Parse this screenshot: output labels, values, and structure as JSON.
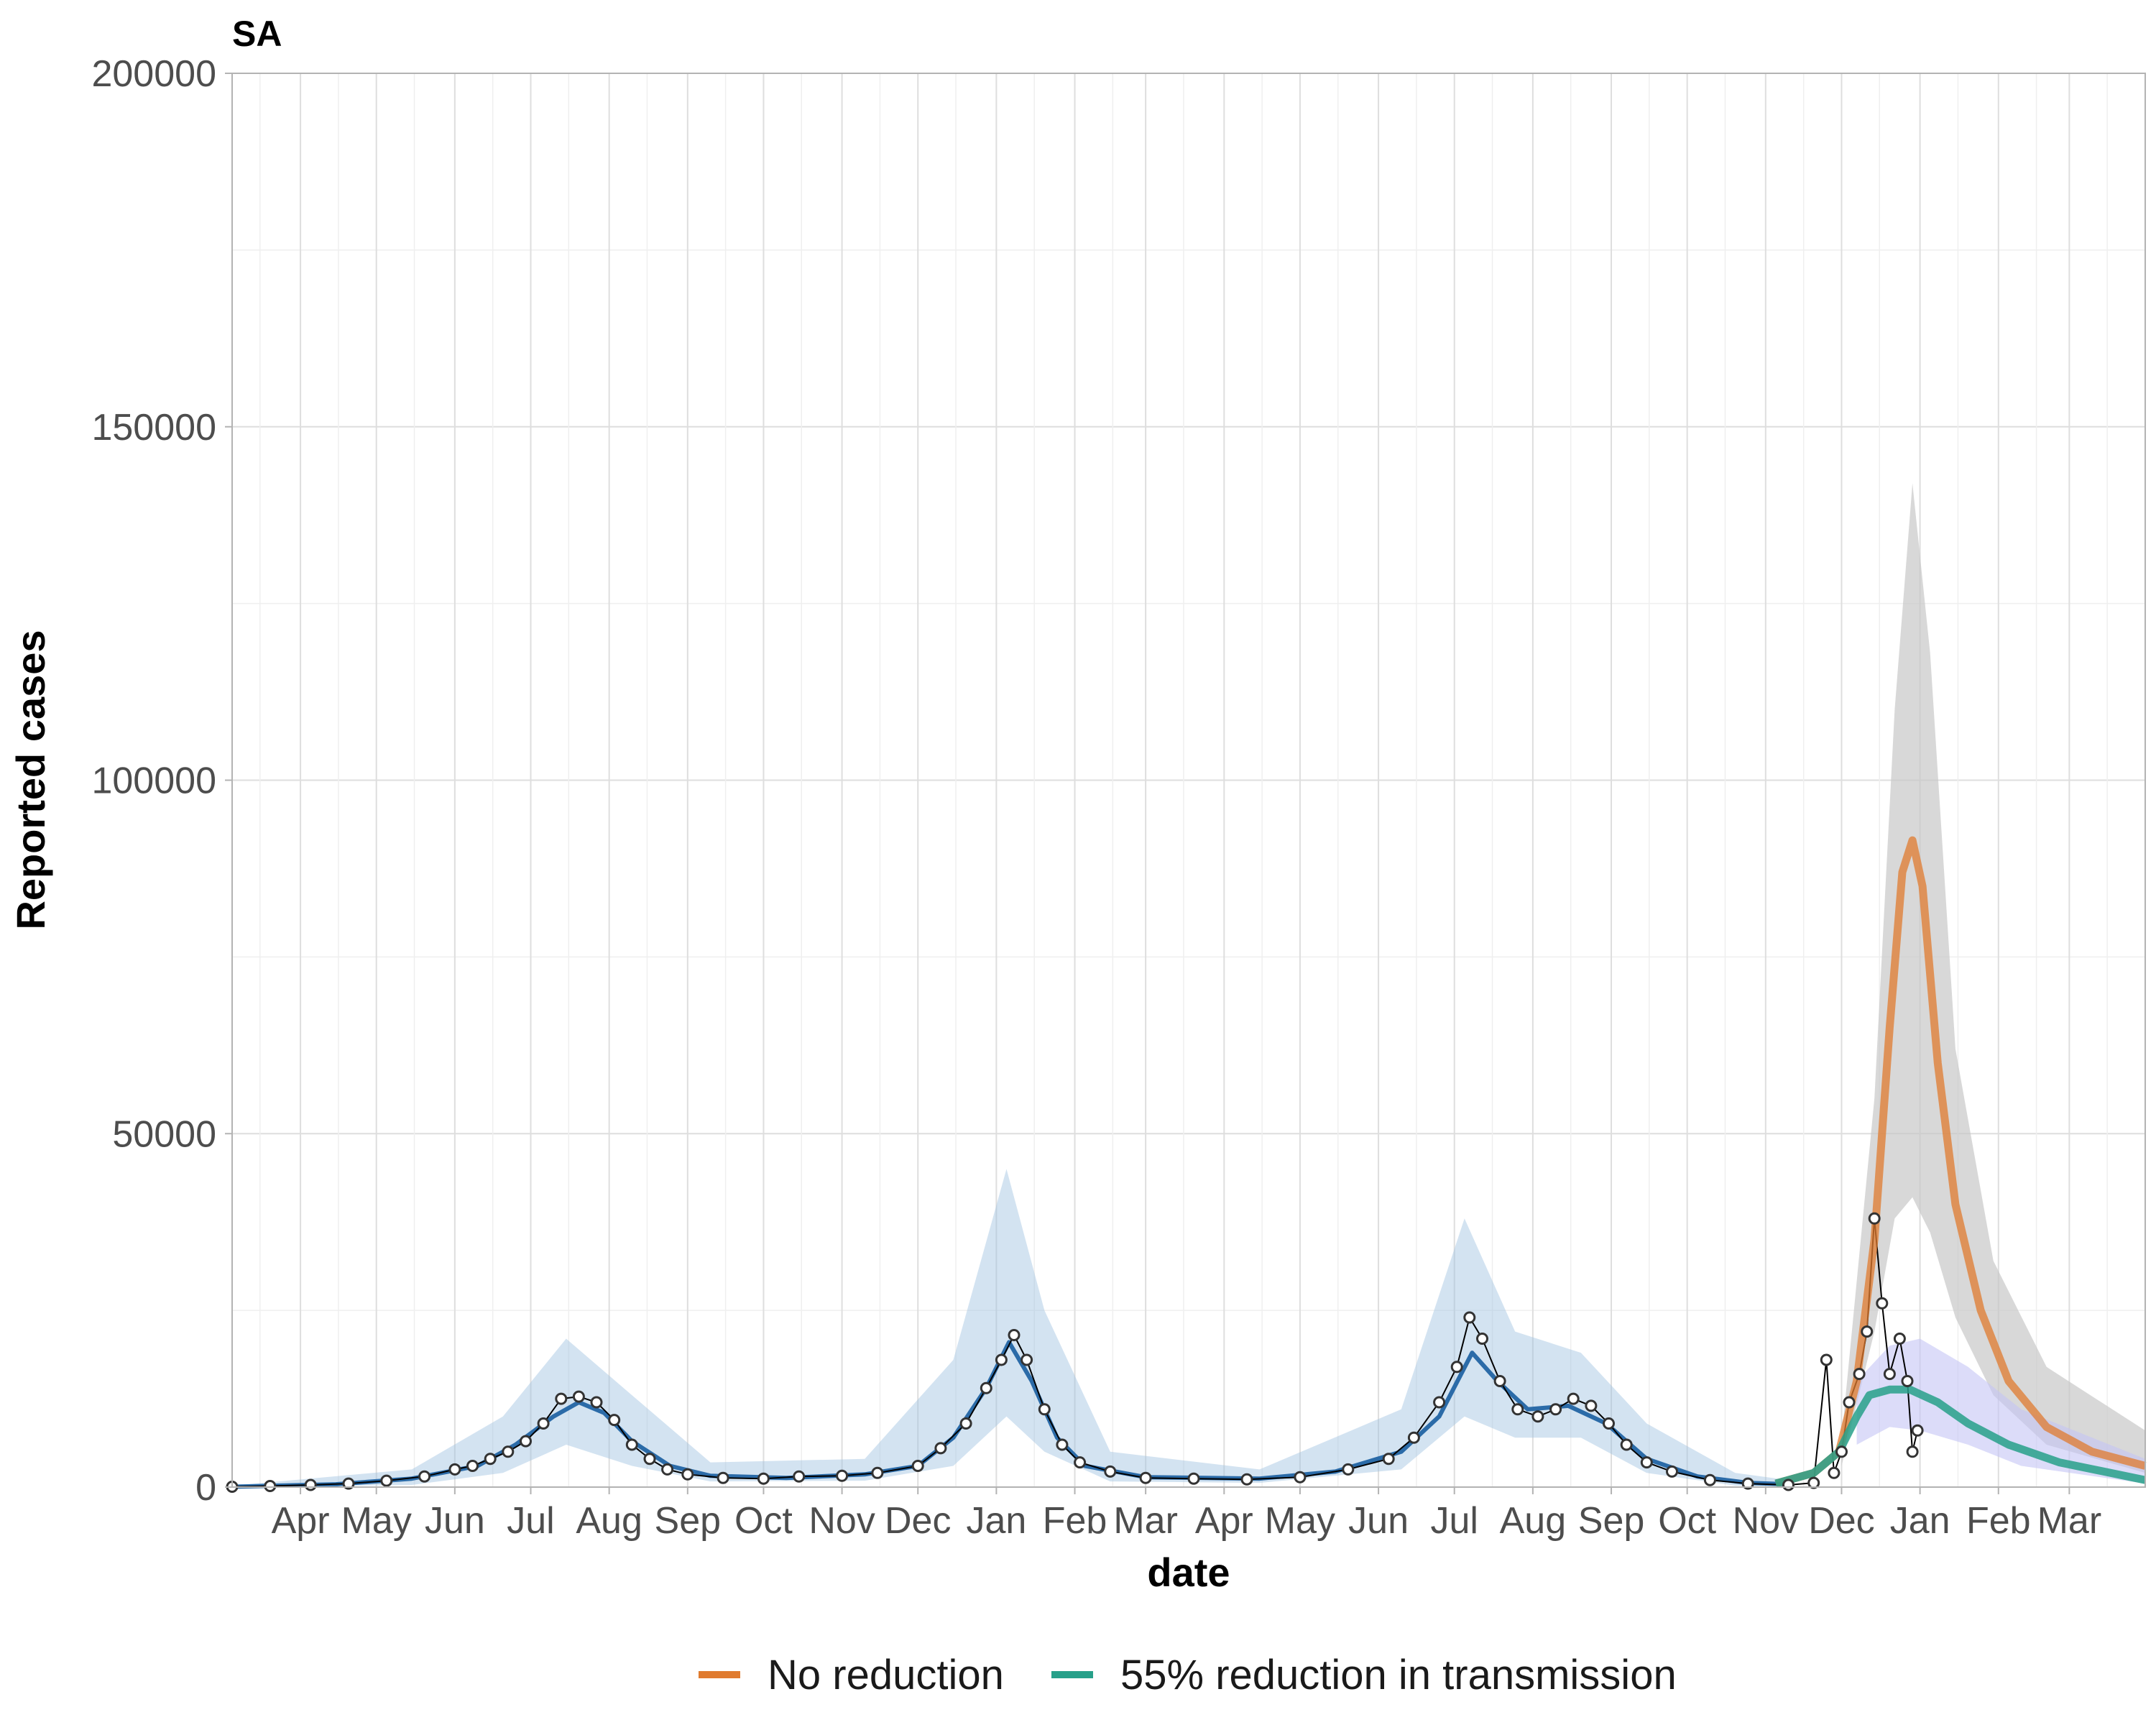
{
  "chart_data": {
    "type": "line",
    "title": "SA",
    "xlabel": "date",
    "ylabel": "Reported cases",
    "ylim": [
      0,
      200000
    ],
    "y_ticks": [
      "0",
      "50000",
      "100000",
      "150000",
      "200000"
    ],
    "x_range": [
      "2020-03-05",
      "2022-03-31"
    ],
    "x_tick_labels": [
      {
        "date": "2020-04-01",
        "label": "Apr"
      },
      {
        "date": "2020-05-01",
        "label": "May"
      },
      {
        "date": "2020-06-01",
        "label": "Jun"
      },
      {
        "date": "2020-07-01",
        "label": "Jul"
      },
      {
        "date": "2020-08-01",
        "label": "Aug"
      },
      {
        "date": "2020-09-01",
        "label": "Sep"
      },
      {
        "date": "2020-10-01",
        "label": "Oct"
      },
      {
        "date": "2020-11-01",
        "label": "Nov"
      },
      {
        "date": "2020-12-01",
        "label": "Dec"
      },
      {
        "date": "2021-01-01",
        "label": "Jan"
      },
      {
        "date": "2021-02-01",
        "label": "Feb"
      },
      {
        "date": "2021-03-01",
        "label": "Mar"
      },
      {
        "date": "2021-04-01",
        "label": "Apr"
      },
      {
        "date": "2021-05-01",
        "label": "May"
      },
      {
        "date": "2021-06-01",
        "label": "Jun"
      },
      {
        "date": "2021-07-01",
        "label": "Jul"
      },
      {
        "date": "2021-08-01",
        "label": "Aug"
      },
      {
        "date": "2021-09-01",
        "label": "Sep"
      },
      {
        "date": "2021-10-01",
        "label": "Oct"
      },
      {
        "date": "2021-11-01",
        "label": "Nov"
      },
      {
        "date": "2021-12-01",
        "label": "Dec"
      },
      {
        "date": "2022-01-01",
        "label": "Jan"
      },
      {
        "date": "2022-02-01",
        "label": "Feb"
      },
      {
        "date": "2022-03-01",
        "label": "Mar"
      }
    ],
    "grid": true,
    "legend_position": "bottom",
    "colors": {
      "observed": "#000000",
      "fit": "#2b6ba8",
      "fit_band": "#9ec2e0",
      "no_reduction": "#e07b2f",
      "reduction": "#27a08a",
      "no_reduction_band": "#c8c8c8",
      "reduction_band": "#c5c5f5"
    },
    "observed_points": [
      [
        "2020-03-05",
        50
      ],
      [
        "2020-03-20",
        150
      ],
      [
        "2020-04-05",
        300
      ],
      [
        "2020-04-20",
        500
      ],
      [
        "2020-05-05",
        900
      ],
      [
        "2020-05-20",
        1500
      ],
      [
        "2020-06-01",
        2500
      ],
      [
        "2020-06-08",
        3000
      ],
      [
        "2020-06-15",
        4000
      ],
      [
        "2020-06-22",
        5000
      ],
      [
        "2020-06-29",
        6500
      ],
      [
        "2020-07-06",
        9000
      ],
      [
        "2020-07-13",
        12500
      ],
      [
        "2020-07-20",
        12800
      ],
      [
        "2020-07-27",
        12000
      ],
      [
        "2020-08-03",
        9500
      ],
      [
        "2020-08-10",
        6000
      ],
      [
        "2020-08-17",
        4000
      ],
      [
        "2020-08-24",
        2500
      ],
      [
        "2020-09-01",
        1800
      ],
      [
        "2020-09-15",
        1300
      ],
      [
        "2020-10-01",
        1200
      ],
      [
        "2020-10-15",
        1500
      ],
      [
        "2020-11-01",
        1600
      ],
      [
        "2020-11-15",
        2000
      ],
      [
        "2020-12-01",
        3000
      ],
      [
        "2020-12-10",
        5500
      ],
      [
        "2020-12-20",
        9000
      ],
      [
        "2020-12-28",
        14000
      ],
      [
        "2021-01-03",
        18000
      ],
      [
        "2021-01-08",
        21500
      ],
      [
        "2021-01-13",
        18000
      ],
      [
        "2021-01-20",
        11000
      ],
      [
        "2021-01-27",
        6000
      ],
      [
        "2021-02-03",
        3500
      ],
      [
        "2021-02-15",
        2200
      ],
      [
        "2021-03-01",
        1300
      ],
      [
        "2021-03-20",
        1200
      ],
      [
        "2021-04-10",
        1100
      ],
      [
        "2021-05-01",
        1400
      ],
      [
        "2021-05-20",
        2500
      ],
      [
        "2021-06-05",
        4000
      ],
      [
        "2021-06-15",
        7000
      ],
      [
        "2021-06-25",
        12000
      ],
      [
        "2021-07-02",
        17000
      ],
      [
        "2021-07-07",
        24000
      ],
      [
        "2021-07-12",
        21000
      ],
      [
        "2021-07-19",
        15000
      ],
      [
        "2021-07-26",
        11000
      ],
      [
        "2021-08-03",
        10000
      ],
      [
        "2021-08-10",
        11000
      ],
      [
        "2021-08-17",
        12500
      ],
      [
        "2021-08-24",
        11500
      ],
      [
        "2021-08-31",
        9000
      ],
      [
        "2021-09-07",
        6000
      ],
      [
        "2021-09-15",
        3500
      ],
      [
        "2021-09-25",
        2200
      ],
      [
        "2021-10-10",
        1000
      ],
      [
        "2021-10-25",
        500
      ],
      [
        "2021-11-10",
        300
      ],
      [
        "2021-11-20",
        600
      ],
      [
        "2021-11-25",
        18000
      ],
      [
        "2021-11-28",
        2000
      ],
      [
        "2021-12-01",
        5000
      ],
      [
        "2021-12-04",
        12000
      ],
      [
        "2021-12-08",
        16000
      ],
      [
        "2021-12-11",
        22000
      ],
      [
        "2021-12-14",
        38000
      ],
      [
        "2021-12-17",
        26000
      ],
      [
        "2021-12-20",
        16000
      ],
      [
        "2021-12-24",
        21000
      ],
      [
        "2021-12-27",
        15000
      ],
      [
        "2021-12-29",
        5000
      ],
      [
        "2021-12-31",
        8000
      ]
    ],
    "fit": [
      [
        "2020-03-05",
        50
      ],
      [
        "2020-04-15",
        400
      ],
      [
        "2020-05-15",
        1200
      ],
      [
        "2020-06-10",
        3000
      ],
      [
        "2020-06-25",
        6000
      ],
      [
        "2020-07-10",
        10000
      ],
      [
        "2020-07-20",
        12000
      ],
      [
        "2020-07-30",
        10500
      ],
      [
        "2020-08-10",
        6500
      ],
      [
        "2020-08-25",
        3000
      ],
      [
        "2020-09-10",
        1600
      ],
      [
        "2020-10-10",
        1300
      ],
      [
        "2020-11-10",
        1800
      ],
      [
        "2020-12-01",
        3000
      ],
      [
        "2020-12-15",
        7000
      ],
      [
        "2020-12-28",
        14000
      ],
      [
        "2021-01-06",
        20500
      ],
      [
        "2021-01-15",
        15000
      ],
      [
        "2021-01-25",
        7000
      ],
      [
        "2021-02-05",
        3000
      ],
      [
        "2021-03-01",
        1400
      ],
      [
        "2021-04-15",
        1200
      ],
      [
        "2021-05-15",
        2200
      ],
      [
        "2021-06-10",
        5000
      ],
      [
        "2021-06-25",
        10000
      ],
      [
        "2021-07-08",
        19000
      ],
      [
        "2021-07-18",
        15000
      ],
      [
        "2021-07-30",
        11000
      ],
      [
        "2021-08-15",
        11500
      ],
      [
        "2021-08-30",
        9000
      ],
      [
        "2021-09-15",
        4000
      ],
      [
        "2021-10-05",
        1500
      ],
      [
        "2021-10-25",
        600
      ],
      [
        "2021-11-10",
        400
      ]
    ],
    "fit_band_outer": [
      [
        "2020-03-05",
        0,
        200
      ],
      [
        "2020-05-15",
        300,
        2500
      ],
      [
        "2020-06-20",
        2000,
        10000
      ],
      [
        "2020-07-15",
        6000,
        21000
      ],
      [
        "2020-08-10",
        3000,
        13000
      ],
      [
        "2020-09-10",
        800,
        3500
      ],
      [
        "2020-11-10",
        900,
        4000
      ],
      [
        "2020-12-15",
        3000,
        18000
      ],
      [
        "2021-01-05",
        10000,
        45000
      ],
      [
        "2021-01-20",
        5000,
        25000
      ],
      [
        "2021-02-15",
        800,
        5000
      ],
      [
        "2021-04-15",
        600,
        2500
      ],
      [
        "2021-06-10",
        2500,
        11000
      ],
      [
        "2021-07-05",
        10000,
        38000
      ],
      [
        "2021-07-25",
        7000,
        22000
      ],
      [
        "2021-08-20",
        7000,
        19000
      ],
      [
        "2021-09-15",
        2000,
        9000
      ],
      [
        "2021-10-20",
        200,
        2000
      ],
      [
        "2021-11-10",
        100,
        1000
      ]
    ],
    "series": [
      {
        "name": "No reduction",
        "values": [
          [
            "2021-11-05",
            500
          ],
          [
            "2021-11-20",
            2000
          ],
          [
            "2021-11-30",
            5000
          ],
          [
            "2021-12-07",
            15000
          ],
          [
            "2021-12-14",
            35000
          ],
          [
            "2021-12-20",
            65000
          ],
          [
            "2021-12-25",
            87000
          ],
          [
            "2021-12-29",
            91500
          ],
          [
            "2022-01-02",
            85000
          ],
          [
            "2022-01-08",
            60000
          ],
          [
            "2022-01-15",
            40000
          ],
          [
            "2022-01-25",
            25000
          ],
          [
            "2022-02-05",
            15000
          ],
          [
            "2022-02-20",
            8500
          ],
          [
            "2022-03-10",
            5000
          ],
          [
            "2022-03-31",
            3000
          ]
        ],
        "band": [
          [
            "2021-12-01",
            3000,
            7000
          ],
          [
            "2021-12-14",
            22000,
            55000
          ],
          [
            "2021-12-22",
            38000,
            110000
          ],
          [
            "2021-12-29",
            41000,
            142000
          ],
          [
            "2022-01-05",
            36000,
            118000
          ],
          [
            "2022-01-15",
            24000,
            62000
          ],
          [
            "2022-01-30",
            13000,
            32000
          ],
          [
            "2022-02-20",
            6000,
            17000
          ],
          [
            "2022-03-31",
            2000,
            8000
          ]
        ]
      },
      {
        "name": "55% reduction in transmission",
        "values": [
          [
            "2021-11-05",
            500
          ],
          [
            "2021-11-20",
            2000
          ],
          [
            "2021-11-30",
            5000
          ],
          [
            "2021-12-07",
            10000
          ],
          [
            "2021-12-12",
            13000
          ],
          [
            "2021-12-20",
            13800
          ],
          [
            "2021-12-28",
            13800
          ],
          [
            "2022-01-08",
            12000
          ],
          [
            "2022-01-20",
            9000
          ],
          [
            "2022-02-05",
            6000
          ],
          [
            "2022-02-25",
            3500
          ],
          [
            "2022-03-31",
            1000
          ]
        ],
        "band": [
          [
            "2021-12-07",
            6000,
            15000
          ],
          [
            "2021-12-20",
            8500,
            20000
          ],
          [
            "2022-01-01",
            8000,
            21000
          ],
          [
            "2022-01-20",
            6000,
            17000
          ],
          [
            "2022-02-10",
            3000,
            11000
          ],
          [
            "2022-03-31",
            500,
            4000
          ]
        ]
      }
    ]
  }
}
